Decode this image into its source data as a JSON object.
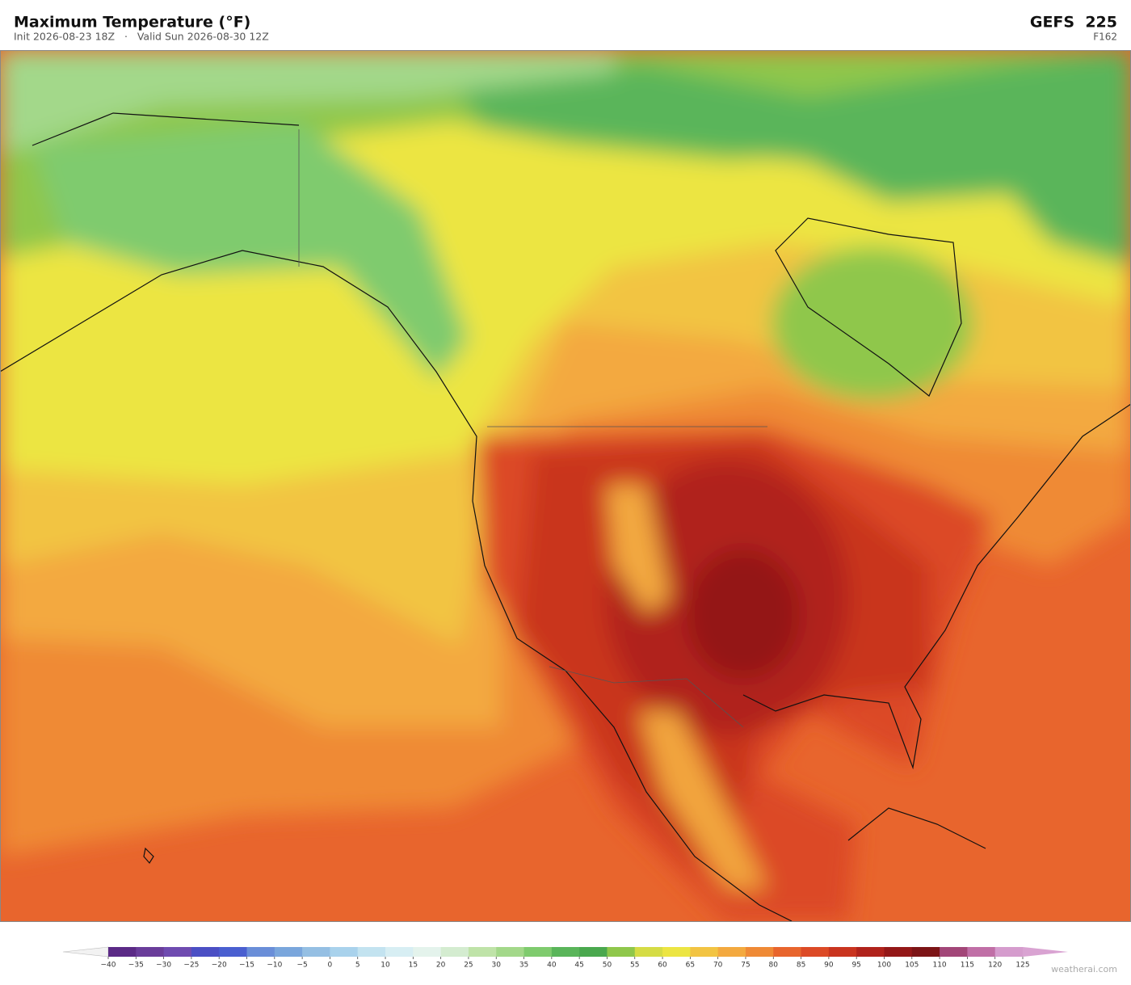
{
  "header": {
    "title": "Maximum Temperature  (°F)",
    "subtitle": "Init 2026-08-23 18Z   ·   Valid Sun 2026-08-30 12Z",
    "model": "GEFS  225",
    "forecast_hour": "F162"
  },
  "colorbar": {
    "ticks": [
      {
        "value": -40,
        "label": "−40"
      },
      {
        "value": -35,
        "label": "−35"
      },
      {
        "value": -30,
        "label": "−30"
      },
      {
        "value": -25,
        "label": "−25"
      },
      {
        "value": -20,
        "label": "−20"
      },
      {
        "value": -15,
        "label": "−15"
      },
      {
        "value": -10,
        "label": "−10"
      },
      {
        "value": -5,
        "label": "−5"
      },
      0,
      5,
      10,
      15,
      20,
      25,
      30,
      35,
      40,
      45,
      50,
      55,
      60,
      65,
      70,
      75,
      80,
      85,
      90,
      95,
      100,
      105,
      110,
      115,
      120,
      125
    ],
    "colors": [
      "#5b2a86",
      "#6a3d9a",
      "#6f4bb0",
      "#4b4fc4",
      "#4a5fd0",
      "#6a8ed8",
      "#7aa6dc",
      "#95bfe3",
      "#a9d2ec",
      "#c3e3f0",
      "#d7eef3",
      "#e4f3ec",
      "#d4ecd0",
      "#bfe3a8",
      "#a3d88a",
      "#7fcb6e",
      "#5ab55a",
      "#4aa84e",
      "#8fc74b",
      "#d5dc45",
      "#ece543",
      "#f2c443",
      "#f3a93f",
      "#ef8a36",
      "#e8652d",
      "#dc4a26",
      "#c9341f",
      "#b0231c",
      "#941818",
      "#7c1416",
      "#a24678",
      "#c06fa6",
      "#d59ccd"
    ],
    "under_color": "#f2f2f2",
    "over_color": "#d9a3d2"
  },
  "watermark": "weatherai.com"
}
